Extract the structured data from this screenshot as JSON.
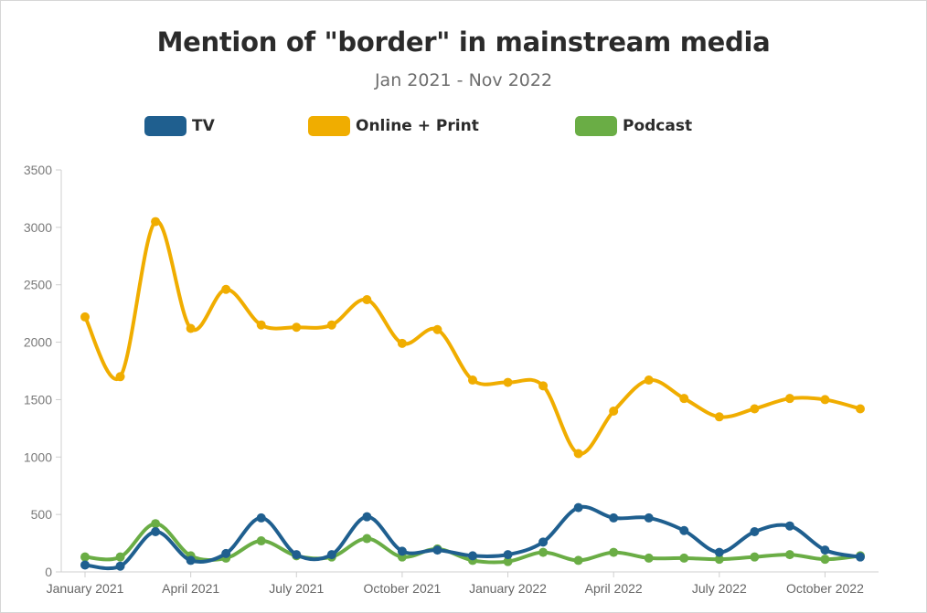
{
  "title": "Mention of \"border\" in mainstream media",
  "subtitle": "Jan 2021 - Nov 2022",
  "legend": [
    {
      "label": "TV",
      "color": "#1f5f8f"
    },
    {
      "label": "Online + Print",
      "color": "#f0ad00"
    },
    {
      "label": "Podcast",
      "color": "#6aad45"
    }
  ],
  "chart_data": {
    "type": "line",
    "title": "Mention of \"border\" in mainstream media",
    "subtitle": "Jan 2021 - Nov 2022",
    "x": [
      "2021-01",
      "2021-02",
      "2021-03",
      "2021-04",
      "2021-05",
      "2021-06",
      "2021-07",
      "2021-08",
      "2021-09",
      "2021-10",
      "2021-11",
      "2021-12",
      "2022-01",
      "2022-02",
      "2022-03",
      "2022-04",
      "2022-05",
      "2022-06",
      "2022-07",
      "2022-08",
      "2022-09",
      "2022-10",
      "2022-11"
    ],
    "x_tick_labels": [
      "January 2021",
      "April 2021",
      "July 2021",
      "October 2021",
      "January 2022",
      "April 2022",
      "July 2022",
      "October 2022"
    ],
    "x_tick_positions": [
      "2021-01",
      "2021-04",
      "2021-07",
      "2021-10",
      "2022-01",
      "2022-04",
      "2022-07",
      "2022-10"
    ],
    "ylim": [
      0,
      3500
    ],
    "y_ticks": [
      0,
      500,
      1000,
      1500,
      2000,
      2500,
      3000,
      3500
    ],
    "grid": false,
    "legend_position": "top",
    "series": [
      {
        "name": "TV",
        "color": "#1f5f8f",
        "values": [
          60,
          50,
          350,
          100,
          160,
          470,
          150,
          150,
          480,
          180,
          190,
          140,
          150,
          260,
          560,
          470,
          470,
          360,
          170,
          350,
          400,
          190,
          130
        ]
      },
      {
        "name": "Online + Print",
        "color": "#f0ad00",
        "values": [
          2220,
          1700,
          3050,
          2120,
          2460,
          2150,
          2130,
          2150,
          2370,
          1990,
          2110,
          1670,
          1650,
          1620,
          1030,
          1400,
          1670,
          1510,
          1350,
          1420,
          1510,
          1500,
          1420
        ]
      },
      {
        "name": "Podcast",
        "color": "#6aad45",
        "values": [
          130,
          130,
          420,
          140,
          120,
          270,
          140,
          130,
          290,
          130,
          200,
          100,
          90,
          170,
          100,
          170,
          120,
          120,
          110,
          130,
          150,
          110,
          140
        ]
      }
    ]
  }
}
